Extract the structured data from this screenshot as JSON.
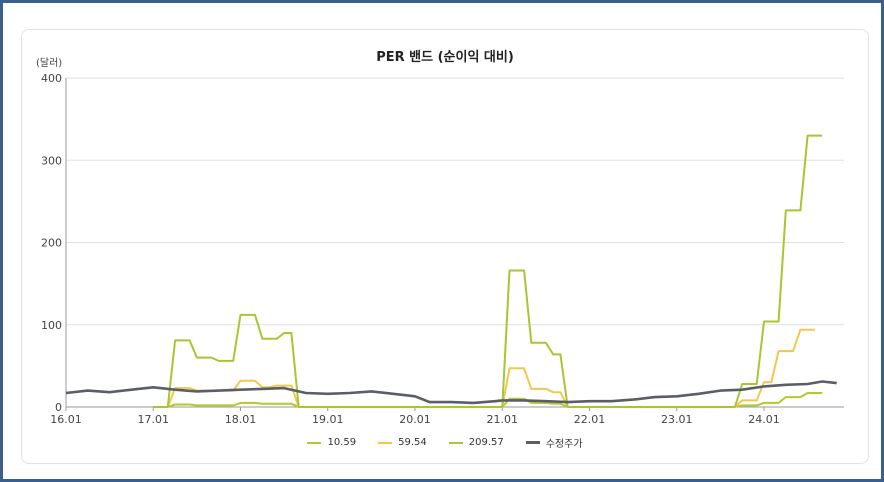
{
  "chart_data": {
    "type": "line",
    "title": "PER 밴드 (순이익 대비)",
    "y_unit": "(달러)",
    "ylim": [
      0,
      400
    ],
    "y_ticks": [
      "0",
      "100",
      "200",
      "300",
      "400"
    ],
    "x_tick_labels": [
      "16.01",
      "17.01",
      "18.01",
      "19.01",
      "20.01",
      "21.01",
      "22.01",
      "23.01",
      "24.01"
    ],
    "xlim": [
      "2016-01",
      "2024-12"
    ],
    "grid": true,
    "legend_position": "bottom",
    "series": [
      {
        "name": "10.59",
        "color": "#b2ca2a",
        "points": [
          [
            "2017-01",
            0
          ],
          [
            "2017-03",
            0
          ],
          [
            "2017-04",
            3
          ],
          [
            "2017-06",
            3
          ],
          [
            "2017-07",
            2
          ],
          [
            "2017-12",
            2
          ],
          [
            "2018-01",
            5
          ],
          [
            "2018-03",
            5
          ],
          [
            "2018-04",
            4
          ],
          [
            "2018-08",
            4
          ],
          [
            "2018-09",
            0
          ],
          [
            "2021-01",
            0
          ],
          [
            "2021-02",
            10
          ],
          [
            "2021-04",
            10
          ],
          [
            "2021-05",
            5
          ],
          [
            "2021-07",
            5
          ],
          [
            "2021-08",
            4
          ],
          [
            "2021-09",
            4
          ],
          [
            "2021-10",
            0
          ],
          [
            "2023-09",
            0
          ],
          [
            "2023-10",
            2
          ],
          [
            "2023-12",
            2
          ],
          [
            "2024-01",
            5
          ],
          [
            "2024-03",
            5
          ],
          [
            "2024-04",
            12
          ],
          [
            "2024-06",
            12
          ],
          [
            "2024-07",
            17
          ],
          [
            "2024-09",
            17
          ]
        ]
      },
      {
        "name": "59.54",
        "color": "#f0c850",
        "points": [
          [
            "2017-01",
            0
          ],
          [
            "2017-03",
            0
          ],
          [
            "2017-04",
            23
          ],
          [
            "2017-06",
            23
          ],
          [
            "2017-07",
            20
          ],
          [
            "2017-12",
            20
          ],
          [
            "2018-01",
            32
          ],
          [
            "2018-03",
            32
          ],
          [
            "2018-04",
            24
          ],
          [
            "2018-05",
            24
          ],
          [
            "2018-06",
            26
          ],
          [
            "2018-08",
            26
          ],
          [
            "2018-09",
            0
          ],
          [
            "2021-01",
            0
          ],
          [
            "2021-02",
            47
          ],
          [
            "2021-04",
            47
          ],
          [
            "2021-05",
            22
          ],
          [
            "2021-07",
            22
          ],
          [
            "2021-08",
            18
          ],
          [
            "2021-09",
            18
          ],
          [
            "2021-10",
            0
          ],
          [
            "2023-09",
            0
          ],
          [
            "2023-10",
            8
          ],
          [
            "2023-12",
            8
          ],
          [
            "2024-01",
            30
          ],
          [
            "2024-02",
            30
          ],
          [
            "2024-03",
            68
          ],
          [
            "2024-05",
            68
          ],
          [
            "2024-06",
            94
          ],
          [
            "2024-08",
            94
          ]
        ]
      },
      {
        "name": "209.57",
        "color": "#a7c631",
        "points": [
          [
            "2017-01",
            0
          ],
          [
            "2017-03",
            0
          ],
          [
            "2017-04",
            81
          ],
          [
            "2017-06",
            81
          ],
          [
            "2017-07",
            60
          ],
          [
            "2017-09",
            60
          ],
          [
            "2017-10",
            56
          ],
          [
            "2017-12",
            56
          ],
          [
            "2018-01",
            112
          ],
          [
            "2018-03",
            112
          ],
          [
            "2018-04",
            83
          ],
          [
            "2018-06",
            83
          ],
          [
            "2018-07",
            90
          ],
          [
            "2018-08",
            90
          ],
          [
            "2018-09",
            0
          ],
          [
            "2021-01",
            0
          ],
          [
            "2021-02",
            166
          ],
          [
            "2021-04",
            166
          ],
          [
            "2021-05",
            78
          ],
          [
            "2021-07",
            78
          ],
          [
            "2021-08",
            64
          ],
          [
            "2021-09",
            64
          ],
          [
            "2021-10",
            0
          ],
          [
            "2023-09",
            0
          ],
          [
            "2023-10",
            28
          ],
          [
            "2023-12",
            28
          ],
          [
            "2024-01",
            104
          ],
          [
            "2024-03",
            104
          ],
          [
            "2024-04",
            239
          ],
          [
            "2024-06",
            239
          ],
          [
            "2024-07",
            330
          ],
          [
            "2024-09",
            330
          ]
        ]
      },
      {
        "name": "수정주가",
        "color": "#5a5e66",
        "points": [
          [
            "2016-01",
            17
          ],
          [
            "2016-04",
            20
          ],
          [
            "2016-07",
            18
          ],
          [
            "2016-10",
            21
          ],
          [
            "2017-01",
            24
          ],
          [
            "2017-04",
            21
          ],
          [
            "2017-07",
            19
          ],
          [
            "2017-10",
            20
          ],
          [
            "2018-01",
            21
          ],
          [
            "2018-04",
            22
          ],
          [
            "2018-07",
            23
          ],
          [
            "2018-10",
            17
          ],
          [
            "2019-01",
            16
          ],
          [
            "2019-04",
            17
          ],
          [
            "2019-07",
            19
          ],
          [
            "2019-10",
            16
          ],
          [
            "2020-01",
            13
          ],
          [
            "2020-03",
            6
          ],
          [
            "2020-06",
            6
          ],
          [
            "2020-09",
            5
          ],
          [
            "2020-12",
            7
          ],
          [
            "2021-01",
            8
          ],
          [
            "2021-04",
            8
          ],
          [
            "2021-07",
            7
          ],
          [
            "2021-10",
            6
          ],
          [
            "2022-01",
            7
          ],
          [
            "2022-04",
            7
          ],
          [
            "2022-07",
            9
          ],
          [
            "2022-10",
            12
          ],
          [
            "2023-01",
            13
          ],
          [
            "2023-04",
            16
          ],
          [
            "2023-07",
            20
          ],
          [
            "2023-10",
            21
          ],
          [
            "2024-01",
            25
          ],
          [
            "2024-04",
            27
          ],
          [
            "2024-07",
            28
          ],
          [
            "2024-09",
            31
          ],
          [
            "2024-11",
            29
          ]
        ]
      }
    ]
  }
}
